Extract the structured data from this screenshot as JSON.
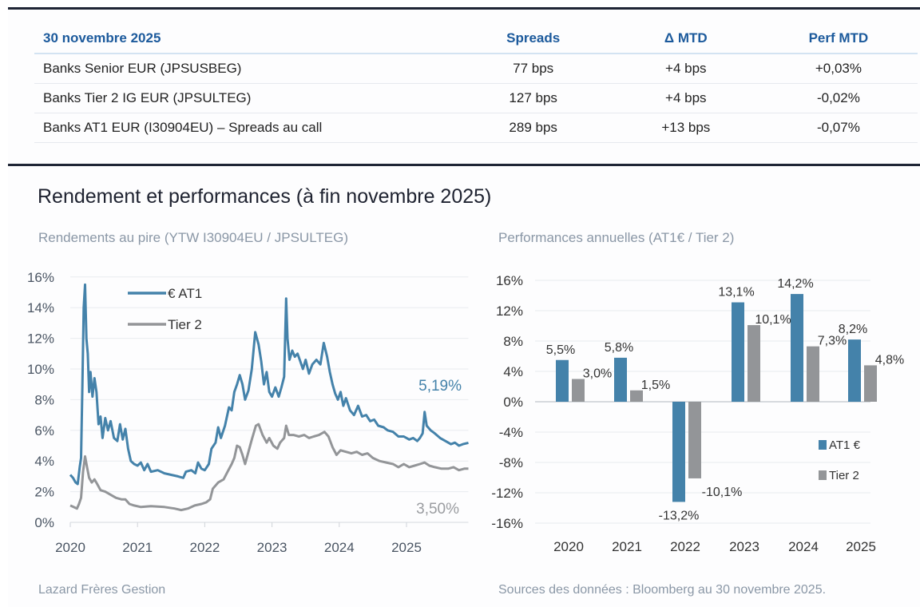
{
  "table": {
    "headers": [
      "30 novembre 2025",
      "Spreads",
      "Δ MTD",
      "Perf MTD"
    ],
    "rows": [
      {
        "name": "Banks Senior EUR (JPSUSBEG)",
        "spread": "77 bps",
        "delta": "+4 bps",
        "perf": "+0,03%",
        "perf_sign": "positive"
      },
      {
        "name": "Banks Tier 2 IG EUR (JPSULTEG)",
        "spread": "127 bps",
        "delta": "+4 bps",
        "perf": "-0,02%",
        "perf_sign": "negative"
      },
      {
        "name": "Banks AT1 EUR (I30904EU) – Spreads au call",
        "spread": "289 bps",
        "delta": "+13 bps",
        "perf": "-0,07%",
        "perf_sign": "negative"
      }
    ]
  },
  "section_title": "Rendement et performances (à fin novembre 2025)",
  "footer": {
    "left": "Lazard Frères Gestion",
    "right": "Sources des données : Bloomberg au 30 novembre 2025."
  },
  "colors": {
    "at1": "#4482aa",
    "tier2": "#939598",
    "header_blue": "#1c5a9c",
    "positive": "#2e9b47",
    "negative": "#e0262a"
  },
  "chart_data": [
    {
      "type": "line",
      "title": "Rendements au pire (YTW I30904EU / JPSULTEG)",
      "xlabel": "",
      "ylabel": "",
      "x_ticks": [
        "2020",
        "2021",
        "2022",
        "2023",
        "2024",
        "2025"
      ],
      "x_range": [
        2020.0,
        2025.92
      ],
      "y_ticks": [
        "0%",
        "2%",
        "4%",
        "6%",
        "8%",
        "10%",
        "12%",
        "14%",
        "16%"
      ],
      "ylim": [
        0,
        16
      ],
      "grid": true,
      "legend": "top-left",
      "end_labels": {
        "at1": "5,19%",
        "tier2": "3,50%"
      },
      "series": [
        {
          "name": "€ AT1",
          "key": "at1",
          "points": [
            [
              2020.0,
              3.1
            ],
            [
              2020.04,
              2.9
            ],
            [
              2020.08,
              2.6
            ],
            [
              2020.11,
              2.5
            ],
            [
              2020.14,
              3.6
            ],
            [
              2020.16,
              4.2
            ],
            [
              2020.18,
              9.0
            ],
            [
              2020.2,
              14.0
            ],
            [
              2020.22,
              15.5
            ],
            [
              2020.24,
              12.0
            ],
            [
              2020.26,
              11.0
            ],
            [
              2020.28,
              8.5
            ],
            [
              2020.3,
              9.8
            ],
            [
              2020.33,
              8.2
            ],
            [
              2020.36,
              9.4
            ],
            [
              2020.39,
              8.5
            ],
            [
              2020.42,
              6.4
            ],
            [
              2020.45,
              6.9
            ],
            [
              2020.48,
              5.5
            ],
            [
              2020.52,
              6.8
            ],
            [
              2020.56,
              6.0
            ],
            [
              2020.6,
              6.6
            ],
            [
              2020.65,
              5.5
            ],
            [
              2020.7,
              5.3
            ],
            [
              2020.74,
              6.4
            ],
            [
              2020.78,
              5.4
            ],
            [
              2020.82,
              6.1
            ],
            [
              2020.86,
              4.8
            ],
            [
              2020.9,
              4.0
            ],
            [
              2020.95,
              3.8
            ],
            [
              2021.0,
              3.7
            ],
            [
              2021.05,
              3.9
            ],
            [
              2021.1,
              3.4
            ],
            [
              2021.15,
              3.8
            ],
            [
              2021.2,
              3.3
            ],
            [
              2021.3,
              3.4
            ],
            [
              2021.4,
              3.2
            ],
            [
              2021.5,
              3.1
            ],
            [
              2021.6,
              3.0
            ],
            [
              2021.68,
              2.9
            ],
            [
              2021.72,
              3.3
            ],
            [
              2021.8,
              3.4
            ],
            [
              2021.86,
              3.2
            ],
            [
              2021.9,
              3.9
            ],
            [
              2021.95,
              3.5
            ],
            [
              2022.0,
              3.4
            ],
            [
              2022.06,
              3.8
            ],
            [
              2022.1,
              4.8
            ],
            [
              2022.16,
              5.2
            ],
            [
              2022.2,
              6.2
            ],
            [
              2022.24,
              5.5
            ],
            [
              2022.3,
              6.3
            ],
            [
              2022.36,
              7.5
            ],
            [
              2022.4,
              7.3
            ],
            [
              2022.44,
              8.5
            ],
            [
              2022.48,
              9.0
            ],
            [
              2022.52,
              9.6
            ],
            [
              2022.56,
              9.0
            ],
            [
              2022.6,
              8.0
            ],
            [
              2022.65,
              8.6
            ],
            [
              2022.7,
              10.0
            ],
            [
              2022.75,
              12.4
            ],
            [
              2022.8,
              11.6
            ],
            [
              2022.84,
              10.5
            ],
            [
              2022.88,
              9.0
            ],
            [
              2022.92,
              9.8
            ],
            [
              2022.96,
              8.5
            ],
            [
              2023.0,
              8.2
            ],
            [
              2023.05,
              8.8
            ],
            [
              2023.1,
              8.2
            ],
            [
              2023.14,
              8.8
            ],
            [
              2023.18,
              9.5
            ],
            [
              2023.21,
              14.6
            ],
            [
              2023.23,
              12.0
            ],
            [
              2023.26,
              10.6
            ],
            [
              2023.3,
              11.2
            ],
            [
              2023.34,
              10.8
            ],
            [
              2023.38,
              11.0
            ],
            [
              2023.42,
              10.5
            ],
            [
              2023.46,
              10.0
            ],
            [
              2023.5,
              10.6
            ],
            [
              2023.55,
              9.7
            ],
            [
              2023.6,
              10.3
            ],
            [
              2023.66,
              10.6
            ],
            [
              2023.72,
              10.3
            ],
            [
              2023.77,
              11.7
            ],
            [
              2023.82,
              10.8
            ],
            [
              2023.86,
              9.8
            ],
            [
              2023.9,
              9.0
            ],
            [
              2023.94,
              8.4
            ],
            [
              2023.98,
              8.0
            ],
            [
              2024.02,
              8.5
            ],
            [
              2024.06,
              7.6
            ],
            [
              2024.1,
              8.1
            ],
            [
              2024.16,
              7.3
            ],
            [
              2024.22,
              7.0
            ],
            [
              2024.28,
              7.6
            ],
            [
              2024.34,
              6.9
            ],
            [
              2024.4,
              7.0
            ],
            [
              2024.46,
              6.6
            ],
            [
              2024.52,
              6.7
            ],
            [
              2024.58,
              6.3
            ],
            [
              2024.66,
              6.2
            ],
            [
              2024.72,
              6.0
            ],
            [
              2024.8,
              5.9
            ],
            [
              2024.88,
              5.6
            ],
            [
              2024.96,
              5.6
            ],
            [
              2025.04,
              5.4
            ],
            [
              2025.1,
              5.5
            ],
            [
              2025.16,
              5.3
            ],
            [
              2025.2,
              5.5
            ],
            [
              2025.24,
              5.8
            ],
            [
              2025.27,
              7.2
            ],
            [
              2025.3,
              6.3
            ],
            [
              2025.36,
              6.0
            ],
            [
              2025.42,
              5.8
            ],
            [
              2025.5,
              5.5
            ],
            [
              2025.58,
              5.3
            ],
            [
              2025.66,
              5.1
            ],
            [
              2025.72,
              5.2
            ],
            [
              2025.78,
              5.0
            ],
            [
              2025.84,
              5.1
            ],
            [
              2025.92,
              5.19
            ]
          ]
        },
        {
          "name": "Tier 2",
          "key": "tier2",
          "points": [
            [
              2020.0,
              1.1
            ],
            [
              2020.05,
              1.0
            ],
            [
              2020.1,
              0.9
            ],
            [
              2020.13,
              1.2
            ],
            [
              2020.16,
              1.6
            ],
            [
              2020.19,
              3.3
            ],
            [
              2020.22,
              4.3
            ],
            [
              2020.25,
              3.6
            ],
            [
              2020.28,
              2.9
            ],
            [
              2020.32,
              2.6
            ],
            [
              2020.36,
              2.8
            ],
            [
              2020.4,
              2.5
            ],
            [
              2020.45,
              2.1
            ],
            [
              2020.52,
              2.0
            ],
            [
              2020.6,
              1.8
            ],
            [
              2020.68,
              1.6
            ],
            [
              2020.76,
              1.5
            ],
            [
              2020.82,
              1.5
            ],
            [
              2020.88,
              1.2
            ],
            [
              2020.95,
              1.1
            ],
            [
              2021.05,
              1.0
            ],
            [
              2021.2,
              1.05
            ],
            [
              2021.4,
              1.0
            ],
            [
              2021.55,
              0.9
            ],
            [
              2021.65,
              0.8
            ],
            [
              2021.75,
              0.9
            ],
            [
              2021.85,
              1.1
            ],
            [
              2021.95,
              1.2
            ],
            [
              2022.02,
              1.3
            ],
            [
              2022.08,
              1.5
            ],
            [
              2022.12,
              2.2
            ],
            [
              2022.2,
              2.6
            ],
            [
              2022.28,
              2.8
            ],
            [
              2022.34,
              3.3
            ],
            [
              2022.4,
              3.8
            ],
            [
              2022.44,
              4.2
            ],
            [
              2022.48,
              5.0
            ],
            [
              2022.52,
              4.9
            ],
            [
              2022.56,
              4.4
            ],
            [
              2022.6,
              3.8
            ],
            [
              2022.65,
              4.6
            ],
            [
              2022.7,
              5.4
            ],
            [
              2022.76,
              6.3
            ],
            [
              2022.8,
              6.4
            ],
            [
              2022.86,
              5.7
            ],
            [
              2022.92,
              5.2
            ],
            [
              2022.96,
              5.5
            ],
            [
              2023.02,
              5.0
            ],
            [
              2023.08,
              4.8
            ],
            [
              2023.12,
              5.2
            ],
            [
              2023.18,
              5.5
            ],
            [
              2023.21,
              6.3
            ],
            [
              2023.25,
              5.7
            ],
            [
              2023.32,
              5.7
            ],
            [
              2023.4,
              5.6
            ],
            [
              2023.48,
              5.7
            ],
            [
              2023.55,
              5.5
            ],
            [
              2023.62,
              5.6
            ],
            [
              2023.7,
              5.7
            ],
            [
              2023.78,
              5.9
            ],
            [
              2023.84,
              5.6
            ],
            [
              2023.9,
              4.9
            ],
            [
              2023.96,
              4.4
            ],
            [
              2024.02,
              4.7
            ],
            [
              2024.1,
              4.6
            ],
            [
              2024.18,
              4.5
            ],
            [
              2024.26,
              4.6
            ],
            [
              2024.34,
              4.4
            ],
            [
              2024.42,
              4.5
            ],
            [
              2024.5,
              4.2
            ],
            [
              2024.6,
              4.0
            ],
            [
              2024.7,
              3.9
            ],
            [
              2024.8,
              3.8
            ],
            [
              2024.88,
              3.6
            ],
            [
              2024.96,
              3.8
            ],
            [
              2025.04,
              3.6
            ],
            [
              2025.12,
              3.7
            ],
            [
              2025.2,
              3.8
            ],
            [
              2025.27,
              3.9
            ],
            [
              2025.34,
              3.7
            ],
            [
              2025.42,
              3.6
            ],
            [
              2025.52,
              3.5
            ],
            [
              2025.62,
              3.5
            ],
            [
              2025.7,
              3.6
            ],
            [
              2025.78,
              3.4
            ],
            [
              2025.86,
              3.5
            ],
            [
              2025.92,
              3.5
            ]
          ]
        }
      ]
    },
    {
      "type": "bar",
      "title": "Performances annuelles (AT1€ / Tier 2)",
      "xlabel": "",
      "ylabel": "",
      "categories": [
        "2020",
        "2021",
        "2022",
        "2023",
        "2024",
        "2025"
      ],
      "y_ticks": [
        "-16%",
        "-12%",
        "-8%",
        "-4%",
        "0%",
        "4%",
        "8%",
        "12%",
        "16%"
      ],
      "ylim": [
        -16,
        16
      ],
      "grid": true,
      "legend": "right",
      "series": [
        {
          "name": "AT1 €",
          "key": "at1",
          "values": [
            5.5,
            5.8,
            -13.2,
            13.1,
            14.2,
            8.2
          ],
          "labels": [
            "5,5%",
            "5,8%",
            "-13,2%",
            "13,1%",
            "14,2%",
            "8,2%"
          ]
        },
        {
          "name": "Tier 2",
          "key": "tier2",
          "values": [
            3.0,
            1.5,
            -10.1,
            10.1,
            7.3,
            4.8
          ],
          "labels": [
            "3,0%",
            "1,5%",
            "-10,1%",
            "10,1%",
            "7,3%",
            "4,8%"
          ]
        }
      ]
    }
  ]
}
